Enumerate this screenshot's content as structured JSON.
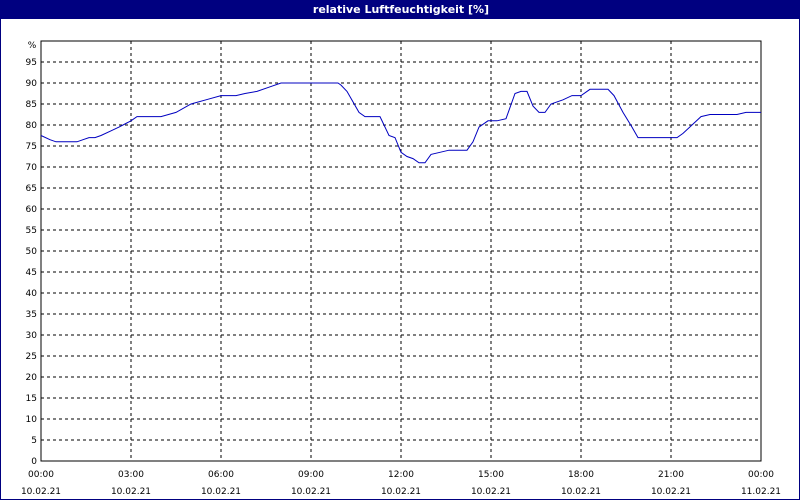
{
  "window": {
    "title": "relative Luftfeuchtigkeit [%]"
  },
  "colors": {
    "titlebar": "#000080",
    "line": "#0000c0",
    "grid": "#000000"
  },
  "chart_data": {
    "type": "line",
    "title": "relative Luftfeuchtigkeit [%]",
    "ylabel": "%",
    "ylim": [
      0,
      100
    ],
    "yticks": [
      0,
      5,
      10,
      15,
      20,
      25,
      30,
      35,
      40,
      45,
      50,
      55,
      60,
      65,
      70,
      75,
      80,
      85,
      90,
      95
    ],
    "xlim": [
      0,
      24
    ],
    "xticks": [
      {
        "x": 0,
        "time": "00:00",
        "date": "10.02.21"
      },
      {
        "x": 3,
        "time": "03:00",
        "date": "10.02.21"
      },
      {
        "x": 6,
        "time": "06:00",
        "date": "10.02.21"
      },
      {
        "x": 9,
        "time": "09:00",
        "date": "10.02.21"
      },
      {
        "x": 12,
        "time": "12:00",
        "date": "10.02.21"
      },
      {
        "x": 15,
        "time": "15:00",
        "date": "10.02.21"
      },
      {
        "x": 18,
        "time": "18:00",
        "date": "10.02.21"
      },
      {
        "x": 21,
        "time": "21:00",
        "date": "10.02.21"
      },
      {
        "x": 24,
        "time": "00:00",
        "date": "11.02.21"
      }
    ],
    "grid": true,
    "series": [
      {
        "points": [
          [
            0.0,
            77.5
          ],
          [
            0.3,
            76.5
          ],
          [
            0.5,
            76
          ],
          [
            1.0,
            76
          ],
          [
            1.2,
            76
          ],
          [
            1.4,
            76.5
          ],
          [
            1.6,
            77
          ],
          [
            1.8,
            77
          ],
          [
            2.0,
            77.5
          ],
          [
            2.3,
            78.5
          ],
          [
            2.6,
            79.5
          ],
          [
            3.0,
            81
          ],
          [
            3.2,
            82
          ],
          [
            3.5,
            82
          ],
          [
            4.0,
            82
          ],
          [
            4.5,
            83
          ],
          [
            5.0,
            85
          ],
          [
            5.5,
            86
          ],
          [
            6.0,
            87
          ],
          [
            6.5,
            87
          ],
          [
            6.8,
            87.5
          ],
          [
            7.2,
            88
          ],
          [
            7.6,
            89
          ],
          [
            8.0,
            90
          ],
          [
            8.5,
            90
          ],
          [
            9.0,
            90
          ],
          [
            9.5,
            90
          ],
          [
            9.9,
            90
          ],
          [
            10.0,
            89.5
          ],
          [
            10.2,
            88
          ],
          [
            10.4,
            85.5
          ],
          [
            10.6,
            83
          ],
          [
            10.8,
            82
          ],
          [
            11.0,
            82
          ],
          [
            11.3,
            82
          ],
          [
            11.6,
            77.5
          ],
          [
            11.8,
            77
          ],
          [
            12.0,
            73.5
          ],
          [
            12.2,
            72.5
          ],
          [
            12.4,
            72
          ],
          [
            12.6,
            71
          ],
          [
            12.8,
            71
          ],
          [
            13.0,
            73
          ],
          [
            13.3,
            73.5
          ],
          [
            13.6,
            74
          ],
          [
            14.0,
            74
          ],
          [
            14.2,
            74
          ],
          [
            14.4,
            76
          ],
          [
            14.6,
            79.5
          ],
          [
            14.9,
            81
          ],
          [
            15.2,
            81
          ],
          [
            15.5,
            81.5
          ],
          [
            15.8,
            87.5
          ],
          [
            16.0,
            88
          ],
          [
            16.2,
            88
          ],
          [
            16.4,
            84.5
          ],
          [
            16.6,
            83
          ],
          [
            16.8,
            83
          ],
          [
            17.0,
            85
          ],
          [
            17.4,
            86
          ],
          [
            17.7,
            87
          ],
          [
            18.0,
            87
          ],
          [
            18.3,
            88.5
          ],
          [
            18.6,
            88.5
          ],
          [
            18.9,
            88.5
          ],
          [
            19.1,
            87
          ],
          [
            19.4,
            83
          ],
          [
            19.7,
            79.5
          ],
          [
            19.9,
            77
          ],
          [
            20.3,
            77
          ],
          [
            20.7,
            77
          ],
          [
            21.0,
            77
          ],
          [
            21.2,
            77
          ],
          [
            21.4,
            78
          ],
          [
            21.7,
            80
          ],
          [
            22.0,
            82
          ],
          [
            22.3,
            82.5
          ],
          [
            22.8,
            82.5
          ],
          [
            23.0,
            82.5
          ],
          [
            23.2,
            82.5
          ],
          [
            23.5,
            83
          ],
          [
            24.0,
            83
          ]
        ]
      }
    ]
  }
}
